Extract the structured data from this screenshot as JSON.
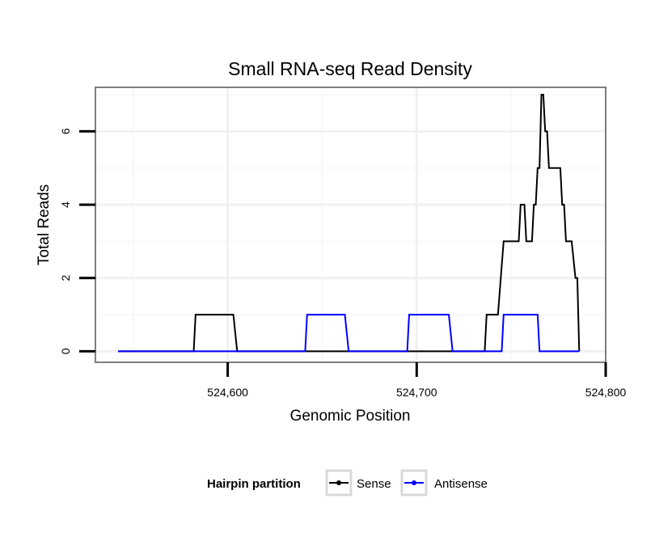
{
  "chart_data": {
    "type": "line",
    "title": "Small RNA-seq Read Density",
    "xlabel": "Genomic Position",
    "ylabel": "Total Reads",
    "xlim": [
      524530,
      524800
    ],
    "ylim": [
      -0.3,
      7.2
    ],
    "x_ticks": [
      524600,
      524700,
      524800
    ],
    "x_tick_labels": [
      "524,600",
      "524,700",
      "524,800"
    ],
    "y_ticks": [
      0,
      2,
      4,
      6
    ],
    "y_tick_labels": [
      "0",
      "2",
      "4",
      "6"
    ],
    "grid": true,
    "legend": {
      "title": "Hairpin partition",
      "position": "bottom",
      "entries": [
        "Sense",
        "Antisense"
      ]
    },
    "series": [
      {
        "name": "Sense",
        "color": "#000000",
        "x": [
          524542,
          524582,
          524583,
          524603,
          524605,
          524736,
          524737,
          524743,
          524746,
          524754,
          524755,
          524757,
          524758,
          524761,
          524762,
          524763,
          524764,
          524765,
          524766,
          524767,
          524768,
          524769,
          524770,
          524771,
          524774,
          524776,
          524777,
          524778,
          524779,
          524782,
          524784,
          524785,
          524786
        ],
        "y": [
          0,
          0,
          1,
          1,
          0,
          0,
          1,
          1,
          3,
          3,
          4,
          4,
          3,
          3,
          4,
          4,
          5,
          5,
          7,
          7,
          6,
          6,
          5,
          5,
          5,
          5,
          4,
          4,
          3,
          3,
          2,
          2,
          0
        ]
      },
      {
        "name": "Antisense",
        "color": "#0000ff",
        "x": [
          524542,
          524641,
          524642,
          524662,
          524664,
          524695,
          524696,
          524717,
          524719,
          524745,
          524746,
          524764,
          524765,
          524786
        ],
        "y": [
          0,
          0,
          1,
          1,
          0,
          0,
          1,
          1,
          0,
          0,
          1,
          1,
          0,
          0
        ]
      }
    ]
  }
}
